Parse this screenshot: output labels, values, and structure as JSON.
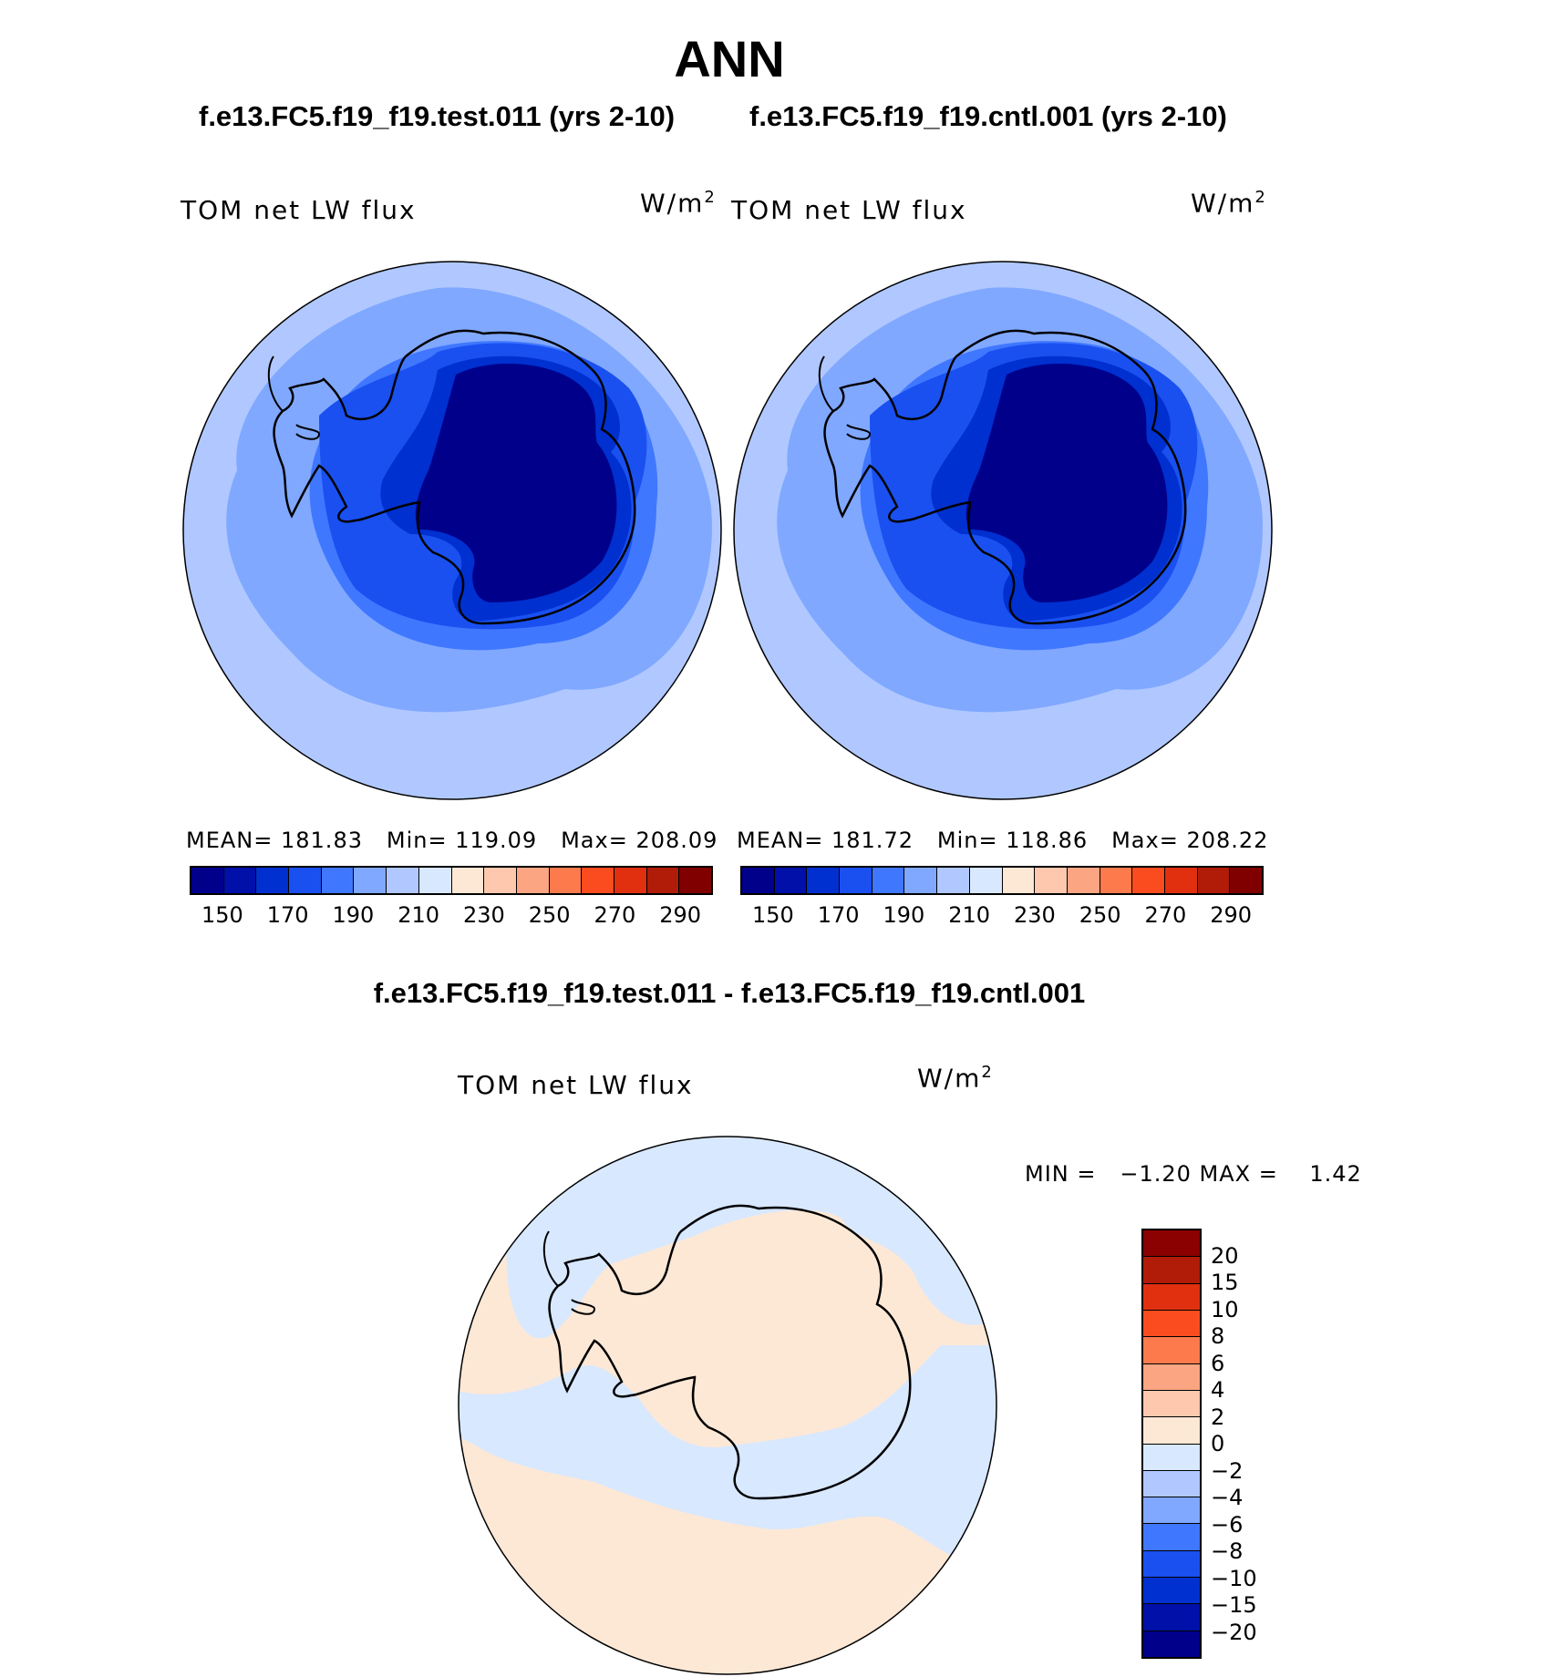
{
  "title": "ANN",
  "panels": [
    {
      "case_title": "f.e13.FC5.f19_f19.test.011 (yrs 2-10)",
      "variable": "TOM net LW flux",
      "units": "W/m",
      "units_sup": "2",
      "mean_label": "MEAN=",
      "mean": "181.83",
      "min_label": "Min=",
      "min": "119.09",
      "max_label": "Max=",
      "max": "208.09"
    },
    {
      "case_title": "f.e13.FC5.f19_f19.cntl.001 (yrs 2-10)",
      "variable": "TOM net LW flux",
      "units": "W/m",
      "units_sup": "2",
      "mean_label": "MEAN=",
      "mean": "181.72",
      "min_label": "Min=",
      "min": "118.86",
      "max_label": "Max=",
      "max": "208.22"
    }
  ],
  "colorbar_abs": {
    "colors": [
      "#00008b",
      "#0010a8",
      "#0030d0",
      "#1a50f0",
      "#4077ff",
      "#80a8ff",
      "#b0c8ff",
      "#d8e8ff",
      "#fde8d6",
      "#fdc8ae",
      "#fca582",
      "#fc7a4c",
      "#fa4c1e",
      "#e03010",
      "#b01c08",
      "#800000"
    ],
    "tick_labels": [
      "150",
      "170",
      "190",
      "210",
      "230",
      "250",
      "270",
      "290"
    ]
  },
  "difference": {
    "title": "f.e13.FC5.f19_f19.test.011 - f.e13.FC5.f19_f19.cntl.001",
    "variable": "TOM net LW flux",
    "units": "W/m",
    "units_sup": "2",
    "minmax_text": "MIN =   −1.20 MAX =    1.42",
    "colorbar": {
      "colors_top_to_bottom": [
        "#8b0000",
        "#b01c08",
        "#e03010",
        "#fa4c1e",
        "#fc7a4c",
        "#fca582",
        "#fdc8ae",
        "#fde8d6",
        "#d8e8ff",
        "#b0c8ff",
        "#80a8ff",
        "#4077ff",
        "#1a50f0",
        "#0030d0",
        "#0010a8",
        "#00008b"
      ],
      "tick_labels_top_to_bottom": [
        "20",
        "15",
        "10",
        "8",
        "6",
        "4",
        "2",
        "0",
        "−2",
        "−4",
        "−6",
        "−8",
        "−10",
        "−15",
        "−20"
      ]
    }
  },
  "map_colors": {
    "abs_outer": "#b0c8ff",
    "abs_mid": "#80a8ff",
    "abs_inner": "#4077ff",
    "abs_shelf": "#1a50f0",
    "abs_coast": "#0030d0",
    "abs_interior": "#00008b",
    "diff_pos": "#fde8d6",
    "diff_neg": "#d8e8ff"
  }
}
